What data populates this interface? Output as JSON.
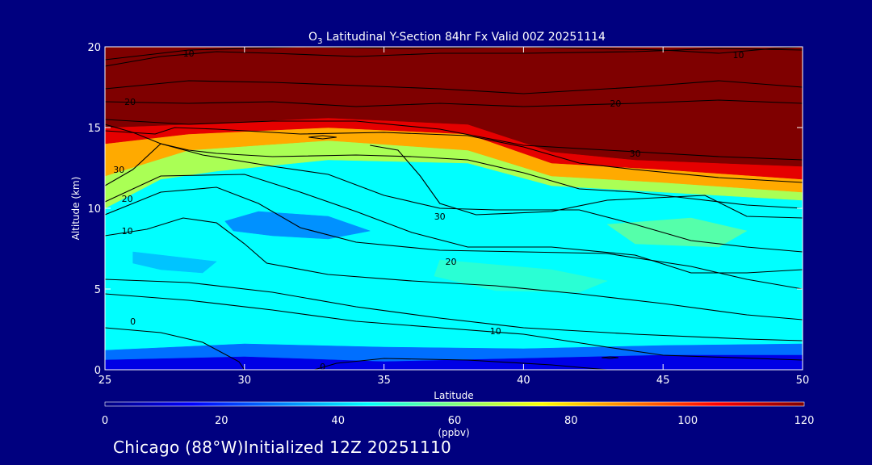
{
  "chart_data": {
    "type": "heatmap",
    "title_species": "O",
    "title_subscript": "3",
    "title_rest": " Latitudinal Y-Section 84hr  Fx Valid 00Z 20251114",
    "xlabel": "Latitude",
    "ylabel": "Altitude (km)",
    "xlim": [
      25,
      50
    ],
    "ylim": [
      0,
      20
    ],
    "x_ticks": [
      25,
      30,
      35,
      40,
      45,
      50
    ],
    "y_ticks": [
      0,
      5,
      10,
      15,
      20
    ],
    "colorbar": {
      "ticks": [
        0,
        20,
        40,
        60,
        80,
        100,
        120
      ],
      "range": [
        0,
        120
      ],
      "unit_label": "(ppbv)"
    },
    "regions": [
      {
        "value": 45,
        "points": [
          [
            25,
            0
          ],
          [
            50,
            0
          ],
          [
            50,
            10.5
          ],
          [
            45,
            11.0
          ],
          [
            41,
            11.4
          ],
          [
            38,
            12.8
          ],
          [
            33,
            13.0
          ],
          [
            29,
            12.3
          ],
          [
            27,
            11.8
          ],
          [
            25,
            10.0
          ]
        ]
      },
      {
        "value": 65,
        "points": [
          [
            25,
            10.0
          ],
          [
            27,
            11.8
          ],
          [
            29,
            12.3
          ],
          [
            33,
            13.0
          ],
          [
            38,
            12.8
          ],
          [
            41,
            11.4
          ],
          [
            45,
            11.0
          ],
          [
            50,
            10.5
          ],
          [
            50,
            11.0
          ],
          [
            45,
            11.6
          ],
          [
            41,
            12.0
          ],
          [
            38,
            13.6
          ],
          [
            33,
            14.2
          ],
          [
            28,
            13.6
          ],
          [
            25,
            12.0
          ]
        ]
      },
      {
        "value": 85,
        "points": [
          [
            25,
            12.0
          ],
          [
            28,
            13.6
          ],
          [
            33,
            14.2
          ],
          [
            38,
            13.6
          ],
          [
            41,
            12.0
          ],
          [
            45,
            11.6
          ],
          [
            50,
            11.0
          ],
          [
            50,
            11.8
          ],
          [
            45,
            12.4
          ],
          [
            41,
            12.8
          ],
          [
            38,
            14.6
          ],
          [
            33,
            15.0
          ],
          [
            28,
            14.6
          ],
          [
            25,
            14.0
          ]
        ]
      },
      {
        "value": 108,
        "points": [
          [
            25,
            14.0
          ],
          [
            28,
            14.6
          ],
          [
            33,
            15.0
          ],
          [
            38,
            14.6
          ],
          [
            41,
            12.8
          ],
          [
            45,
            12.4
          ],
          [
            50,
            11.8
          ],
          [
            50,
            12.6
          ],
          [
            44,
            13.0
          ],
          [
            41,
            13.5
          ],
          [
            38,
            15.2
          ],
          [
            33,
            15.6
          ],
          [
            28,
            15.2
          ],
          [
            25,
            15.0
          ]
        ]
      },
      {
        "value": 120,
        "points": [
          [
            25,
            15.0
          ],
          [
            28,
            15.2
          ],
          [
            33,
            15.6
          ],
          [
            38,
            15.2
          ],
          [
            41,
            13.5
          ],
          [
            44,
            13.0
          ],
          [
            50,
            12.6
          ],
          [
            50,
            20
          ],
          [
            25,
            20
          ]
        ]
      },
      {
        "value": 32,
        "points": [
          [
            29.3,
            9.2
          ],
          [
            30.5,
            9.8
          ],
          [
            33,
            9.5
          ],
          [
            34.5,
            8.6
          ],
          [
            33,
            8.1
          ],
          [
            31,
            8.3
          ],
          [
            29.6,
            8.6
          ]
        ]
      },
      {
        "value": 38,
        "points": [
          [
            26,
            7.3
          ],
          [
            27.5,
            7.0
          ],
          [
            29,
            6.7
          ],
          [
            28.5,
            6.0
          ],
          [
            27,
            6.2
          ],
          [
            26,
            6.6
          ]
        ]
      },
      {
        "value": 50,
        "points": [
          [
            37,
            6.8
          ],
          [
            41,
            6.2
          ],
          [
            43,
            5.5
          ],
          [
            42,
            4.8
          ],
          [
            39,
            4.9
          ],
          [
            36.8,
            5.8
          ]
        ]
      },
      {
        "value": 55,
        "points": [
          [
            43,
            9.0
          ],
          [
            46,
            9.4
          ],
          [
            48,
            8.6
          ],
          [
            47,
            7.6
          ],
          [
            44,
            7.8
          ]
        ]
      },
      {
        "value": 28,
        "points": [
          [
            25,
            1.2
          ],
          [
            30,
            1.6
          ],
          [
            35,
            1.4
          ],
          [
            40,
            1.3
          ],
          [
            45,
            1.5
          ],
          [
            50,
            1.6
          ],
          [
            50,
            0
          ],
          [
            25,
            0
          ]
        ]
      },
      {
        "value": 12,
        "points": [
          [
            25,
            0
          ],
          [
            25,
            0.6
          ],
          [
            30,
            0.8
          ],
          [
            35,
            0.5
          ],
          [
            40,
            0.7
          ],
          [
            45,
            0.9
          ],
          [
            50,
            0.9
          ],
          [
            50,
            0
          ]
        ]
      }
    ],
    "contours": [
      {
        "label": "0",
        "label_at": [
          26.0,
          3.0
        ],
        "points": [
          [
            25,
            2.6
          ],
          [
            27,
            2.3
          ],
          [
            28.5,
            1.7
          ],
          [
            29.8,
            0.5
          ],
          [
            30,
            0
          ]
        ]
      },
      {
        "label": "0",
        "label_at": [
          32.8,
          0.2
        ],
        "points": [
          [
            32.5,
            0
          ],
          [
            33.3,
            0.4
          ],
          [
            35,
            0.7
          ],
          [
            38,
            0.6
          ],
          [
            41,
            0.3
          ],
          [
            43,
            0
          ]
        ]
      },
      {
        "label": "",
        "label_at": null,
        "points": [
          [
            25,
            5.6
          ],
          [
            28,
            5.4
          ],
          [
            31,
            4.8
          ],
          [
            34,
            3.9
          ],
          [
            37,
            3.2
          ],
          [
            40,
            2.6
          ],
          [
            44,
            2.2
          ],
          [
            48,
            1.9
          ],
          [
            50,
            1.8
          ]
        ]
      },
      {
        "label": "10",
        "label_at": [
          39.0,
          2.4
        ],
        "points": [
          [
            25,
            4.7
          ],
          [
            28,
            4.3
          ],
          [
            31,
            3.7
          ],
          [
            34,
            3.0
          ],
          [
            37,
            2.6
          ],
          [
            40,
            2.2
          ],
          [
            43,
            1.4
          ],
          [
            45,
            0.9
          ],
          [
            50,
            0.6
          ]
        ]
      },
      {
        "label": "10",
        "label_at": [
          25.8,
          8.6
        ],
        "points": [
          [
            25,
            8.3
          ],
          [
            26.5,
            8.7
          ],
          [
            27.8,
            9.4
          ],
          [
            29,
            9.1
          ],
          [
            30,
            7.8
          ],
          [
            30.8,
            6.6
          ],
          [
            33,
            5.9
          ],
          [
            36,
            5.5
          ],
          [
            39,
            5.2
          ],
          [
            42,
            4.7
          ],
          [
            45,
            4.1
          ],
          [
            48,
            3.4
          ],
          [
            50,
            3.1
          ]
        ]
      },
      {
        "label": "20",
        "label_at": [
          25.8,
          10.6
        ],
        "points": [
          [
            25,
            9.6
          ],
          [
            27,
            11.0
          ],
          [
            29,
            11.3
          ],
          [
            30.5,
            10.3
          ],
          [
            32,
            8.8
          ],
          [
            34,
            7.9
          ],
          [
            37,
            7.4
          ],
          [
            40,
            7.3
          ],
          [
            43,
            7.2
          ],
          [
            46,
            6.4
          ],
          [
            48,
            5.6
          ],
          [
            50,
            5.0
          ]
        ]
      },
      {
        "label": "20",
        "label_at": [
          37.4,
          6.7
        ],
        "points": [
          [
            25,
            10.4
          ],
          [
            27,
            12.0
          ],
          [
            30,
            12.1
          ],
          [
            32,
            11.0
          ],
          [
            34,
            9.8
          ],
          [
            36,
            8.5
          ],
          [
            38,
            7.6
          ],
          [
            41,
            7.6
          ],
          [
            44,
            7.1
          ],
          [
            46,
            6.0
          ],
          [
            48,
            6.0
          ],
          [
            50,
            6.2
          ]
        ]
      },
      {
        "label": "30",
        "label_at": [
          25.5,
          12.4
        ],
        "points": [
          [
            25,
            11.4
          ],
          [
            26,
            12.4
          ],
          [
            27,
            14.0
          ],
          [
            28.5,
            13.3
          ],
          [
            31,
            12.6
          ],
          [
            33,
            12.1
          ],
          [
            35,
            10.8
          ],
          [
            37,
            10.0
          ],
          [
            39,
            9.9
          ],
          [
            42,
            9.9
          ],
          [
            44,
            9.0
          ],
          [
            46,
            8.0
          ],
          [
            48,
            7.6
          ],
          [
            50,
            7.3
          ]
        ]
      },
      {
        "label": "30",
        "label_at": [
          37.0,
          9.5
        ],
        "points": [
          [
            34.5,
            13.9
          ],
          [
            35.5,
            13.6
          ],
          [
            36.3,
            12.0
          ],
          [
            37,
            10.3
          ],
          [
            38.3,
            9.6
          ],
          [
            41,
            9.8
          ],
          [
            43,
            10.5
          ],
          [
            46.5,
            10.8
          ],
          [
            48,
            9.5
          ],
          [
            50,
            9.4
          ]
        ]
      },
      {
        "label": "",
        "label_at": null,
        "points": [
          [
            25,
            15.2
          ],
          [
            26,
            14.7
          ],
          [
            27,
            14.0
          ],
          [
            28,
            13.6
          ],
          [
            29,
            13.4
          ],
          [
            31,
            13.2
          ],
          [
            34,
            13.3
          ],
          [
            36,
            13.2
          ],
          [
            38,
            13.0
          ],
          [
            40,
            12.2
          ],
          [
            42,
            11.2
          ],
          [
            44,
            11.0
          ],
          [
            46,
            10.6
          ],
          [
            48,
            10.2
          ],
          [
            50,
            10.0
          ]
        ]
      },
      {
        "label": "",
        "label_at": null,
        "points": [
          [
            25,
            14.8
          ],
          [
            26.8,
            14.6
          ],
          [
            27.5,
            15.0
          ],
          [
            29,
            14.9
          ],
          [
            32,
            14.6
          ],
          [
            35,
            14.7
          ],
          [
            38,
            14.5
          ],
          [
            40,
            13.8
          ],
          [
            42,
            12.8
          ],
          [
            44,
            12.4
          ],
          [
            47,
            11.9
          ],
          [
            50,
            11.6
          ]
        ]
      },
      {
        "label": "30",
        "label_at": [
          44.0,
          13.4
        ],
        "points": [
          [
            25,
            15.5
          ],
          [
            28,
            15.2
          ],
          [
            31,
            15.4
          ],
          [
            34,
            15.4
          ],
          [
            37,
            14.9
          ],
          [
            40,
            13.9
          ],
          [
            44,
            13.5
          ],
          [
            47,
            13.2
          ],
          [
            50,
            13.0
          ]
        ]
      },
      {
        "label": "20",
        "label_at": [
          25.9,
          16.6
        ],
        "points": [
          [
            25,
            16.6
          ],
          [
            28,
            16.5
          ],
          [
            31,
            16.6
          ],
          [
            34,
            16.3
          ],
          [
            37,
            16.5
          ],
          [
            40,
            16.3
          ],
          [
            44,
            16.5
          ],
          [
            47,
            16.7
          ],
          [
            50,
            16.5
          ]
        ]
      },
      {
        "label": "20",
        "label_at": [
          43.3,
          16.5
        ],
        "points": [
          [
            25,
            17.4
          ],
          [
            28,
            17.9
          ],
          [
            31,
            17.8
          ],
          [
            34,
            17.6
          ],
          [
            37,
            17.4
          ],
          [
            40,
            17.1
          ],
          [
            44,
            17.5
          ],
          [
            47,
            17.9
          ],
          [
            50,
            17.5
          ]
        ]
      },
      {
        "label": "10",
        "label_at": [
          28.0,
          19.6
        ],
        "points": [
          [
            25,
            18.8
          ],
          [
            27,
            19.4
          ],
          [
            29,
            19.7
          ],
          [
            31,
            19.6
          ],
          [
            34,
            19.4
          ],
          [
            37,
            19.6
          ],
          [
            40,
            19.6
          ],
          [
            44,
            19.7
          ],
          [
            47,
            19.9
          ],
          [
            50,
            19.8
          ]
        ]
      },
      {
        "label": "10",
        "label_at": [
          47.7,
          19.5
        ],
        "points": [
          [
            25,
            19.2
          ],
          [
            28,
            19.8
          ],
          [
            32,
            20
          ],
          [
            36,
            19.9
          ],
          [
            40,
            20
          ],
          [
            45,
            19.8
          ],
          [
            47,
            19.6
          ],
          [
            49,
            19.9
          ],
          [
            50,
            20
          ]
        ]
      },
      {
        "label": "",
        "label_at": null,
        "points": [
          [
            32.3,
            14.4
          ],
          [
            32.8,
            14.5
          ],
          [
            33.3,
            14.4
          ],
          [
            32.8,
            14.3
          ],
          [
            32.3,
            14.4
          ]
        ]
      },
      {
        "label": "",
        "label_at": null,
        "points": [
          [
            42.8,
            0.75
          ],
          [
            43.1,
            0.8
          ],
          [
            43.4,
            0.75
          ],
          [
            43.1,
            0.7
          ],
          [
            42.8,
            0.75
          ]
        ]
      }
    ]
  },
  "footer_text": "Chicago (88°W)Initialized 12Z 20251110"
}
